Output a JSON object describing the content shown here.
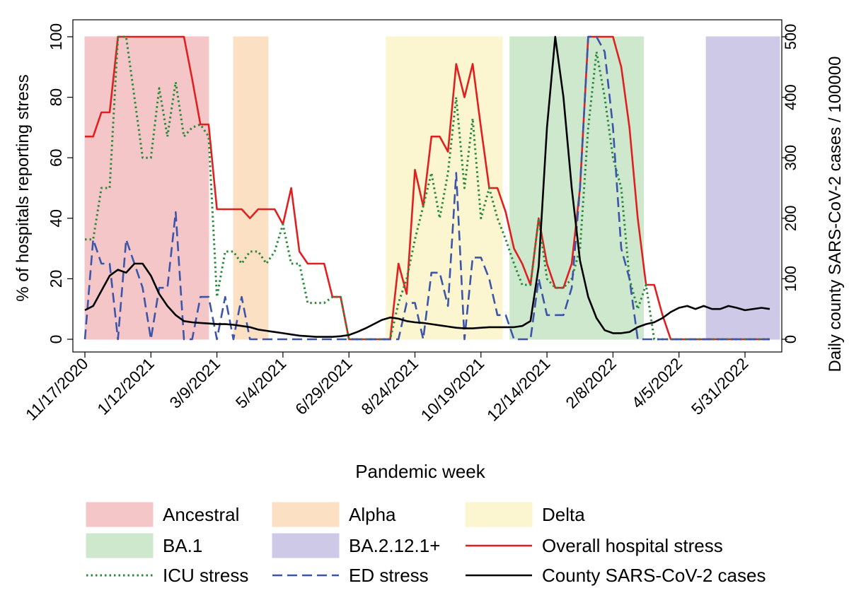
{
  "chart_data": {
    "type": "line",
    "xlabel": "Pandemic week",
    "ylabel": "% of hospitals reporting stress",
    "y2label": "Daily county SARS-CoV-2 cases / 100000",
    "ylim": [
      0,
      100
    ],
    "y2lim": [
      0,
      500
    ],
    "yticks": [
      0,
      20,
      40,
      60,
      80,
      100
    ],
    "y2ticks": [
      0,
      100,
      200,
      300,
      400,
      500
    ],
    "xlim": [
      0,
      83
    ],
    "xticks": [
      {
        "week": 0,
        "label": "11/17/2020"
      },
      {
        "week": 8,
        "label": "1/12/2021"
      },
      {
        "week": 16,
        "label": "3/9/2021"
      },
      {
        "week": 24,
        "label": "5/4/2021"
      },
      {
        "week": 32,
        "label": "6/29/2021"
      },
      {
        "week": 40,
        "label": "8/24/2021"
      },
      {
        "week": 48,
        "label": "10/19/2021"
      },
      {
        "week": 56,
        "label": "12/14/2021"
      },
      {
        "week": 64,
        "label": "2/8/2022"
      },
      {
        "week": 72,
        "label": "4/5/2022"
      },
      {
        "week": 80,
        "label": "5/31/2022"
      }
    ],
    "variant_periods": [
      {
        "name": "Ancestral",
        "start": 0,
        "end": 15,
        "color": "#f5c6c8"
      },
      {
        "name": "Alpha",
        "start": 18,
        "end": 22.2,
        "color": "#fbe0c4"
      },
      {
        "name": "Delta",
        "start": 36.5,
        "end": 50.6,
        "color": "#fbf6cf"
      },
      {
        "name": "BA.1",
        "start": 51.5,
        "end": 67.7,
        "color": "#cde8cd"
      },
      {
        "name": "BA.2.12.1+",
        "start": 75.3,
        "end": 84.2,
        "color": "#cdc9e6"
      }
    ],
    "series": [
      {
        "name": "Overall hospital stress",
        "color": "#e02020",
        "dash": "solid",
        "axis": "left",
        "x": [
          0,
          1,
          2,
          3,
          4,
          5,
          6,
          7,
          8,
          9,
          10,
          11,
          12,
          13,
          14,
          15,
          16,
          17,
          18,
          19,
          20,
          21,
          22,
          23,
          24,
          25,
          26,
          27,
          28,
          29,
          30,
          31,
          32,
          33,
          34,
          35,
          36,
          37,
          38,
          39,
          40,
          41,
          42,
          43,
          44,
          45,
          46,
          47,
          48,
          49,
          50,
          51,
          52,
          53,
          54,
          55,
          56,
          57,
          58,
          59,
          60,
          61,
          62,
          63,
          64,
          65,
          66,
          67,
          68,
          69,
          70,
          71,
          72,
          73,
          74,
          75,
          76,
          77,
          78,
          79,
          80,
          81,
          82,
          83
        ],
        "values": [
          67,
          67,
          75,
          75,
          100,
          100,
          100,
          100,
          100,
          100,
          100,
          100,
          100,
          86,
          71,
          71,
          43,
          43,
          43,
          43,
          40,
          43,
          43,
          43,
          38,
          50,
          29,
          25,
          25,
          25,
          14,
          14,
          0,
          0,
          0,
          0,
          0,
          0,
          25,
          15,
          56,
          44,
          67,
          67,
          62,
          91,
          80,
          91,
          70,
          50,
          50,
          42,
          30,
          25,
          18,
          40,
          25,
          17,
          17,
          25,
          50,
          100,
          100,
          100,
          100,
          90,
          70,
          40,
          18,
          18,
          8,
          0,
          0,
          0,
          0,
          0,
          0,
          0,
          0,
          0,
          0,
          0,
          0,
          0
        ]
      },
      {
        "name": "ICU stress",
        "color": "#2a8a3a",
        "dash": "dotted",
        "axis": "left",
        "x": [
          0,
          1,
          2,
          3,
          4,
          5,
          6,
          7,
          8,
          9,
          10,
          11,
          12,
          13,
          14,
          15,
          16,
          17,
          18,
          19,
          20,
          21,
          22,
          23,
          24,
          25,
          26,
          27,
          28,
          29,
          30,
          31,
          32,
          33,
          34,
          35,
          36,
          37,
          38,
          39,
          40,
          41,
          42,
          43,
          44,
          45,
          46,
          47,
          48,
          49,
          50,
          51,
          52,
          53,
          54,
          55,
          56,
          57,
          58,
          59,
          60,
          61,
          62,
          63,
          64,
          65,
          66,
          67,
          68,
          69,
          70,
          71,
          72,
          73,
          74,
          75,
          76,
          77,
          78,
          79,
          80,
          81,
          82,
          83
        ],
        "values": [
          33,
          33,
          50,
          50,
          100,
          100,
          80,
          60,
          60,
          83,
          67,
          85,
          67,
          70,
          71,
          67,
          14,
          29,
          29,
          25,
          29,
          29,
          25,
          29,
          38,
          25,
          25,
          12,
          12,
          12,
          14,
          14,
          0,
          0,
          0,
          0,
          0,
          0,
          12,
          20,
          33,
          44,
          55,
          40,
          55,
          80,
          50,
          73,
          40,
          50,
          40,
          33,
          25,
          18,
          18,
          40,
          20,
          17,
          17,
          20,
          30,
          70,
          95,
          80,
          60,
          50,
          20,
          10,
          18,
          0,
          0,
          0,
          0,
          0,
          0,
          0,
          0,
          0,
          0,
          0,
          0,
          0,
          0,
          0
        ]
      },
      {
        "name": "ED stress",
        "color": "#3c55a8",
        "dash": "dashed",
        "axis": "left",
        "x": [
          0,
          1,
          2,
          3,
          4,
          5,
          6,
          7,
          8,
          9,
          10,
          11,
          12,
          13,
          14,
          15,
          16,
          17,
          18,
          19,
          20,
          21,
          22,
          23,
          24,
          25,
          26,
          27,
          28,
          29,
          30,
          31,
          32,
          33,
          34,
          35,
          36,
          37,
          38,
          39,
          40,
          41,
          42,
          43,
          44,
          45,
          46,
          47,
          48,
          49,
          50,
          51,
          52,
          53,
          54,
          55,
          56,
          57,
          58,
          59,
          60,
          61,
          62,
          63,
          64,
          65,
          66,
          67,
          68,
          69,
          70,
          71,
          72,
          73,
          74,
          75,
          76,
          77,
          78,
          79,
          80,
          81,
          82,
          83
        ],
        "values": [
          0,
          33,
          25,
          25,
          0,
          33,
          25,
          17,
          0,
          17,
          17,
          42,
          0,
          0,
          14,
          14,
          0,
          14,
          0,
          14,
          0,
          0,
          0,
          0,
          0,
          0,
          0,
          0,
          0,
          0,
          0,
          0,
          0,
          0,
          0,
          0,
          0,
          0,
          0,
          12,
          12,
          0,
          22,
          22,
          11,
          55,
          0,
          27,
          27,
          20,
          8,
          8,
          0,
          0,
          0,
          20,
          8,
          8,
          8,
          17,
          50,
          100,
          100,
          95,
          70,
          30,
          20,
          0,
          0,
          0,
          0,
          0,
          0,
          0,
          0,
          0,
          0,
          0,
          0,
          0,
          0,
          0,
          0,
          0
        ]
      },
      {
        "name": "County SARS-CoV-2 cases",
        "color": "#000000",
        "dash": "solid",
        "axis": "right",
        "x": [
          0,
          1,
          2,
          3,
          4,
          5,
          6,
          7,
          8,
          9,
          10,
          11,
          12,
          13,
          14,
          15,
          16,
          17,
          18,
          19,
          20,
          21,
          22,
          23,
          24,
          25,
          26,
          27,
          28,
          29,
          30,
          31,
          32,
          33,
          34,
          35,
          36,
          37,
          38,
          39,
          40,
          41,
          42,
          43,
          44,
          45,
          46,
          47,
          48,
          49,
          50,
          51,
          52,
          53,
          54,
          55,
          56,
          57,
          58,
          59,
          60,
          61,
          62,
          63,
          64,
          65,
          66,
          67,
          68,
          69,
          70,
          71,
          72,
          73,
          74,
          75,
          76,
          77,
          78,
          79,
          80,
          81,
          82,
          83
        ],
        "values": [
          48,
          55,
          80,
          105,
          115,
          110,
          125,
          125,
          105,
          75,
          55,
          40,
          30,
          28,
          27,
          26,
          25,
          25,
          24,
          22,
          20,
          16,
          14,
          12,
          10,
          8,
          6,
          5,
          4,
          4,
          4,
          5,
          7,
          12,
          18,
          25,
          32,
          36,
          34,
          30,
          28,
          27,
          25,
          23,
          21,
          19,
          18,
          18,
          19,
          20,
          20,
          20,
          20,
          22,
          30,
          120,
          350,
          500,
          400,
          250,
          130,
          70,
          35,
          15,
          10,
          10,
          12,
          20,
          25,
          28,
          35,
          45,
          52,
          55,
          50,
          55,
          50,
          50,
          55,
          52,
          48,
          50,
          52,
          50
        ]
      }
    ],
    "legend": {
      "placement": "bottom",
      "entries": [
        {
          "label": "Ancestral",
          "kind": "patch",
          "color": "#f5c6c8"
        },
        {
          "label": "Alpha",
          "kind": "patch",
          "color": "#fbe0c4"
        },
        {
          "label": "Delta",
          "kind": "patch",
          "color": "#fbf6cf"
        },
        {
          "label": "BA.1",
          "kind": "patch",
          "color": "#cde8cd"
        },
        {
          "label": "BA.2.12.1+",
          "kind": "patch",
          "color": "#cdc9e6"
        },
        {
          "label": "Overall hospital stress",
          "kind": "line",
          "color": "#e02020",
          "dash": "solid"
        },
        {
          "label": "ICU stress",
          "kind": "line",
          "color": "#2a8a3a",
          "dash": "dotted"
        },
        {
          "label": "ED stress",
          "kind": "line",
          "color": "#3c55a8",
          "dash": "dashed"
        },
        {
          "label": "County SARS-CoV-2 cases",
          "kind": "line",
          "color": "#000000",
          "dash": "solid"
        }
      ]
    }
  }
}
